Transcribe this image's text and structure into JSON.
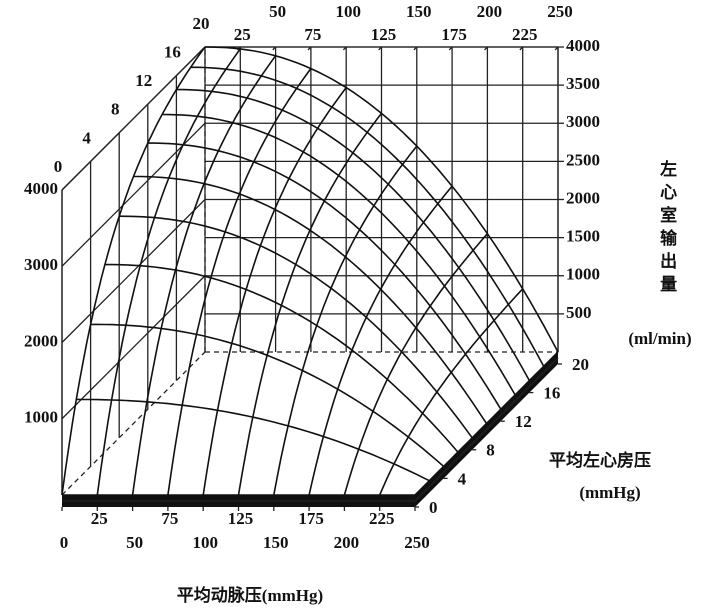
{
  "chart_data": {
    "type": "surface3d",
    "xlabel": "平均动脉压(mmHg)",
    "ylabel": [
      "平均左心房压",
      "(mmHg)"
    ],
    "zlabel": [
      "左心室输出量",
      "(ml/min)"
    ],
    "xlim": [
      0,
      250
    ],
    "ylim": [
      0,
      20
    ],
    "zlim": [
      0,
      4000
    ],
    "xticks": [
      0,
      25,
      50,
      75,
      100,
      125,
      150,
      175,
      200,
      225,
      250
    ],
    "xticks_top": [
      25,
      50,
      75,
      100,
      125,
      150,
      175,
      200,
      225,
      250
    ],
    "yticks": [
      0,
      4,
      8,
      12,
      16,
      20
    ],
    "yticks_left": [
      0,
      4,
      8,
      12,
      16,
      20
    ],
    "zticks": [
      500,
      1000,
      1500,
      2000,
      2500,
      3000,
      3500,
      4000
    ],
    "zticks_left": [
      1000,
      2000,
      3000,
      4000
    ]
  }
}
